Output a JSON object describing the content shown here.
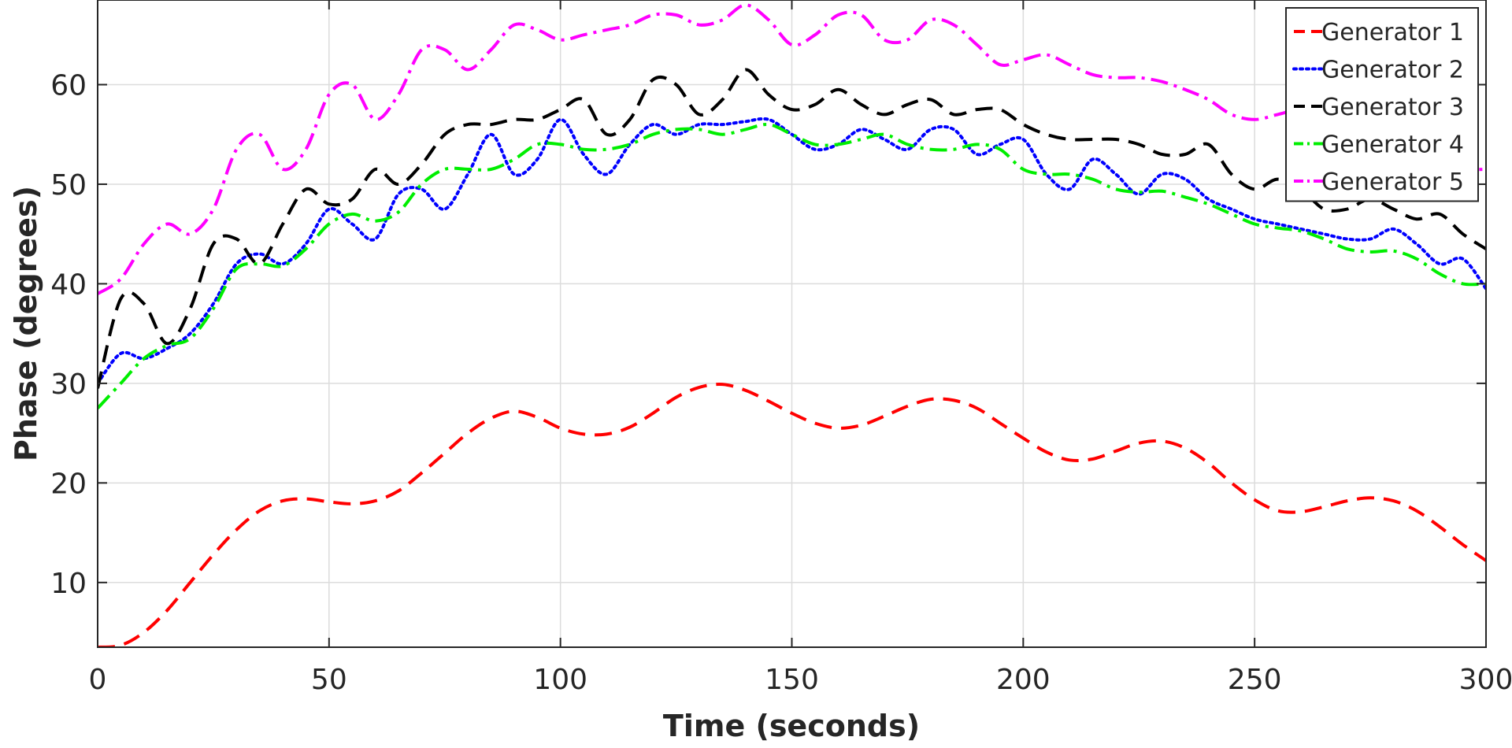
{
  "chart_data": {
    "type": "line",
    "title": "",
    "xlabel": "Time (seconds)",
    "ylabel": "Phase (degrees)",
    "xlim": [
      0,
      300
    ],
    "ylim": [
      3.5,
      68.5
    ],
    "xticks": [
      0,
      50,
      100,
      150,
      200,
      250,
      300
    ],
    "yticks": [
      10,
      20,
      30,
      40,
      50,
      60
    ],
    "grid": true,
    "legend": "top-right",
    "series": [
      {
        "name": "Generator 1",
        "color": "#ff0000",
        "style": "dashed",
        "x": [
          0,
          5,
          10,
          15,
          20,
          25,
          30,
          35,
          40,
          45,
          50,
          55,
          60,
          65,
          70,
          75,
          80,
          85,
          90,
          95,
          100,
          105,
          110,
          115,
          120,
          125,
          130,
          135,
          140,
          145,
          150,
          155,
          160,
          165,
          170,
          175,
          180,
          185,
          190,
          195,
          200,
          205,
          210,
          215,
          220,
          225,
          230,
          235,
          240,
          245,
          250,
          255,
          260,
          265,
          270,
          275,
          280,
          285,
          290,
          295,
          300
        ],
        "y": [
          3.5,
          3.7,
          5.0,
          7.2,
          10.0,
          12.8,
          15.3,
          17.2,
          18.2,
          18.4,
          18.1,
          17.9,
          18.2,
          19.2,
          21.0,
          23.0,
          25.0,
          26.5,
          27.2,
          26.6,
          25.5,
          24.9,
          24.9,
          25.6,
          27.0,
          28.6,
          29.6,
          29.9,
          29.3,
          28.2,
          27.0,
          26.0,
          25.5,
          25.8,
          26.7,
          27.7,
          28.4,
          28.3,
          27.5,
          26.0,
          24.5,
          23.1,
          22.3,
          22.4,
          23.2,
          24.0,
          24.2,
          23.5,
          22.0,
          20.0,
          18.3,
          17.2,
          17.1,
          17.6,
          18.2,
          18.5,
          18.2,
          17.2,
          15.6,
          13.8,
          12.2
        ]
      },
      {
        "name": "Generator 2",
        "color": "#0000ff",
        "style": "dotted",
        "x": [
          0,
          5,
          10,
          15,
          20,
          25,
          30,
          35,
          40,
          45,
          50,
          55,
          60,
          65,
          70,
          75,
          80,
          85,
          90,
          95,
          100,
          105,
          110,
          115,
          120,
          125,
          130,
          135,
          140,
          145,
          150,
          155,
          160,
          165,
          170,
          175,
          180,
          185,
          190,
          195,
          200,
          205,
          210,
          215,
          220,
          225,
          230,
          235,
          240,
          245,
          250,
          255,
          260,
          265,
          270,
          275,
          280,
          285,
          290,
          295,
          300
        ],
        "y": [
          30.0,
          33.0,
          32.5,
          33.5,
          35.0,
          38.0,
          42.0,
          43.0,
          42.0,
          44.0,
          47.5,
          46.0,
          44.5,
          49.0,
          49.5,
          47.5,
          51.0,
          55.0,
          51.0,
          52.5,
          56.5,
          53.0,
          51.0,
          54.0,
          56.0,
          55.0,
          56.0,
          56.0,
          56.3,
          56.5,
          55.0,
          53.5,
          54.0,
          55.5,
          54.5,
          53.5,
          55.5,
          55.5,
          53.0,
          54.0,
          54.5,
          51.0,
          49.5,
          52.5,
          51.0,
          49.0,
          51.0,
          50.5,
          48.5,
          47.5,
          46.5,
          46.0,
          45.5,
          45.0,
          44.5,
          44.5,
          45.5,
          44.0,
          42.0,
          42.5,
          39.5
        ]
      },
      {
        "name": "Generator 3",
        "color": "#000000",
        "style": "dashed",
        "x": [
          0,
          5,
          10,
          15,
          20,
          25,
          30,
          35,
          40,
          45,
          50,
          55,
          60,
          65,
          70,
          75,
          80,
          85,
          90,
          95,
          100,
          105,
          110,
          115,
          120,
          125,
          130,
          135,
          140,
          145,
          150,
          155,
          160,
          165,
          170,
          175,
          180,
          185,
          190,
          195,
          200,
          205,
          210,
          215,
          220,
          225,
          230,
          235,
          240,
          245,
          250,
          255,
          260,
          265,
          270,
          275,
          280,
          285,
          290,
          295,
          300
        ],
        "y": [
          29.5,
          38.5,
          38.0,
          34.0,
          37.5,
          44.0,
          44.5,
          42.0,
          46.0,
          49.5,
          48.0,
          48.5,
          51.5,
          50.0,
          52.0,
          55.0,
          56.0,
          56.0,
          56.5,
          56.5,
          57.5,
          58.5,
          55.0,
          56.5,
          60.5,
          60.0,
          57.0,
          58.5,
          61.5,
          59.0,
          57.5,
          58.0,
          59.5,
          58.0,
          57.0,
          58.0,
          58.5,
          57.0,
          57.5,
          57.5,
          56.0,
          55.0,
          54.5,
          54.5,
          54.5,
          54.0,
          53.0,
          53.0,
          54.0,
          51.0,
          49.5,
          50.5,
          49.5,
          47.5,
          47.5,
          48.5,
          47.5,
          46.5,
          47.0,
          45.0,
          43.5
        ]
      },
      {
        "name": "Generator 4",
        "color": "#00ee00",
        "style": "dash-dot",
        "x": [
          0,
          5,
          10,
          15,
          20,
          25,
          30,
          35,
          40,
          45,
          50,
          55,
          60,
          65,
          70,
          75,
          80,
          85,
          90,
          95,
          100,
          105,
          110,
          115,
          120,
          125,
          130,
          135,
          140,
          145,
          150,
          155,
          160,
          165,
          170,
          175,
          180,
          185,
          190,
          195,
          200,
          205,
          210,
          215,
          220,
          225,
          230,
          235,
          240,
          245,
          250,
          255,
          260,
          265,
          270,
          275,
          280,
          285,
          290,
          295,
          300
        ],
        "y": [
          27.5,
          30.0,
          32.5,
          33.8,
          34.5,
          37.5,
          41.5,
          42.0,
          41.8,
          43.5,
          46.0,
          47.0,
          46.3,
          47.2,
          50.0,
          51.5,
          51.5,
          51.5,
          52.5,
          54.0,
          54.0,
          53.5,
          53.5,
          54.0,
          55.0,
          55.5,
          55.5,
          55.0,
          55.5,
          56.0,
          55.0,
          54.0,
          54.0,
          54.5,
          55.0,
          54.0,
          53.5,
          53.5,
          54.0,
          53.5,
          51.5,
          51.0,
          51.0,
          50.5,
          49.5,
          49.2,
          49.3,
          48.7,
          48.0,
          47.0,
          46.0,
          45.6,
          45.3,
          44.5,
          43.5,
          43.2,
          43.3,
          42.5,
          41.0,
          40.0,
          40.0
        ]
      },
      {
        "name": "Generator 5",
        "color": "#ff00ff",
        "style": "dash-dot",
        "x": [
          0,
          5,
          10,
          15,
          20,
          25,
          30,
          35,
          40,
          45,
          50,
          55,
          60,
          65,
          70,
          75,
          80,
          85,
          90,
          95,
          100,
          105,
          110,
          115,
          120,
          125,
          130,
          135,
          140,
          145,
          150,
          155,
          160,
          165,
          170,
          175,
          180,
          185,
          190,
          195,
          200,
          205,
          210,
          215,
          220,
          225,
          230,
          235,
          240,
          245,
          250,
          255,
          260,
          265,
          270,
          275,
          280,
          285,
          290,
          295,
          300
        ],
        "y": [
          39.0,
          40.5,
          44.0,
          46.0,
          45.0,
          47.5,
          53.5,
          55.0,
          51.5,
          53.5,
          59.0,
          60.0,
          56.5,
          59.0,
          63.5,
          63.5,
          61.5,
          63.5,
          66.0,
          65.5,
          64.5,
          65.0,
          65.5,
          66.0,
          67.0,
          67.0,
          66.0,
          66.5,
          68.0,
          66.5,
          64.0,
          65.0,
          67.0,
          67.0,
          64.5,
          64.5,
          66.5,
          66.0,
          64.0,
          62.0,
          62.5,
          63.0,
          62.0,
          61.0,
          60.7,
          60.7,
          60.3,
          59.5,
          58.5,
          57.0,
          56.5,
          57.0,
          57.5,
          57.0,
          54.5,
          53.5,
          53.0,
          52.5,
          52.0,
          51.5,
          51.5
        ]
      }
    ]
  }
}
